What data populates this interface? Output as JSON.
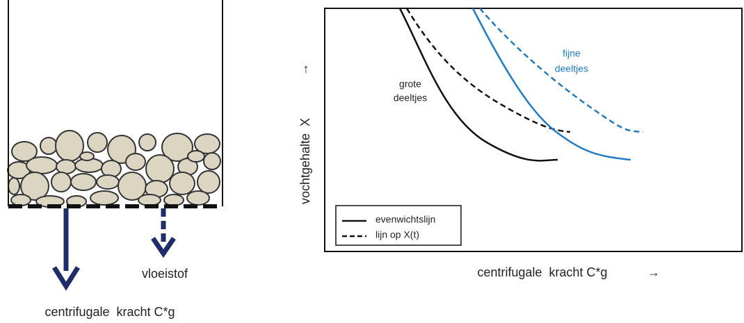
{
  "left_panel": {
    "liquid_label": "vloeistof",
    "force_label": "centrifugale  kracht C*g"
  },
  "graph": {
    "y_label": "vochtgehalte  X",
    "y_arrow": "↑",
    "x_label": "centrifugale  kracht C*g",
    "x_arrow": "→",
    "curve_labels": [
      {
        "lines": [
          "grote",
          "deeltjes"
        ]
      },
      {
        "lines": [
          "fijne",
          "deeltjes"
        ]
      }
    ],
    "legend": [
      "evenwichtslijn",
      "lijn op X(t)"
    ]
  }
}
